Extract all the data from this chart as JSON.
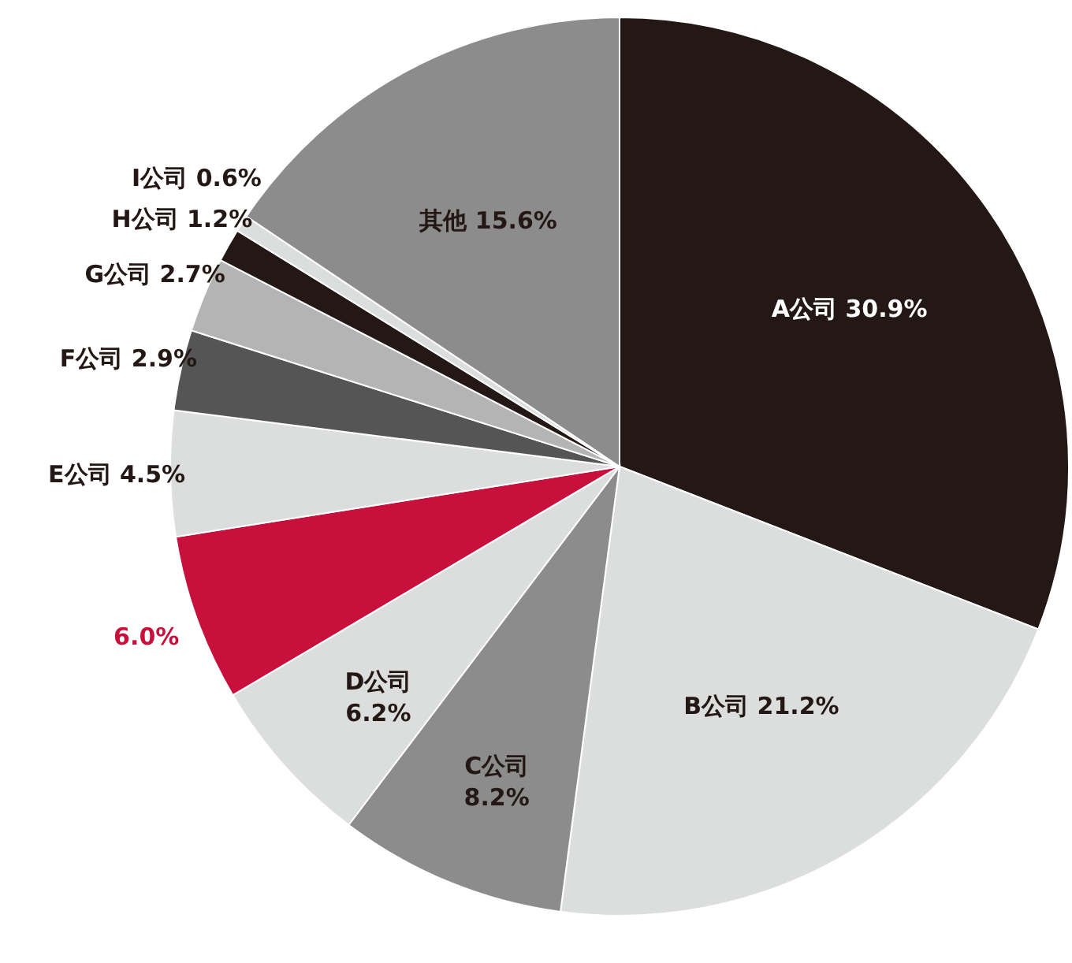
{
  "chart_data": {
    "type": "pie",
    "categories": [
      "A公司",
      "B公司",
      "C公司",
      "D公司",
      null,
      "E公司",
      "F公司",
      "G公司",
      "H公司",
      "I公司",
      "其他"
    ],
    "values": [
      30.9,
      21.2,
      8.2,
      6.2,
      6.0,
      4.5,
      2.9,
      2.7,
      1.2,
      0.6,
      15.6
    ],
    "colors": [
      "#231815",
      "#dcdddd",
      "#8c8c8c",
      "#dcdddd",
      "#c8103c",
      "#dcdddd",
      "#555555",
      "#b4b4b4",
      "#231815",
      "#dcdddd",
      "#8c8c8c"
    ],
    "value_labels": [
      "30.9%",
      "21.2%",
      "8.2%",
      "6.2%",
      "6.0%",
      "4.5%",
      "2.9%",
      "2.7%",
      "1.2%",
      "0.6%",
      "15.6%"
    ]
  }
}
